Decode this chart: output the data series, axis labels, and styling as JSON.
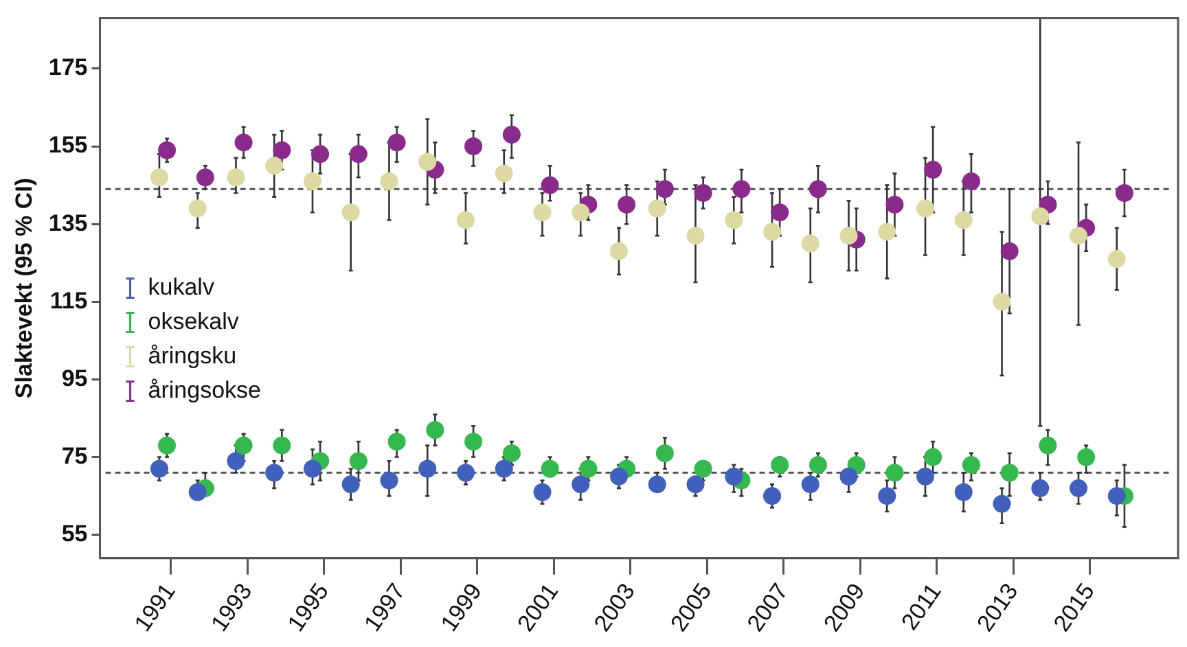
{
  "chart_data": {
    "type": "scatter",
    "ylabel": "Slaktevekt (95 % CI)",
    "categories": [
      "1991",
      null,
      "1993",
      null,
      "1995",
      null,
      "1997",
      null,
      "1999",
      null,
      "2001",
      null,
      "2003",
      null,
      "2005",
      null,
      "2007",
      null,
      "2009",
      null,
      "2011",
      null,
      "2013",
      null,
      "2015",
      null
    ],
    "ylim": [
      49,
      188
    ],
    "yticks": [
      55,
      75,
      95,
      115,
      135,
      155,
      175
    ],
    "grid": false,
    "legend": "left",
    "marker": "circle",
    "series": [
      {
        "name": "kukalv",
        "color": "#4060bc",
        "values": [
          72,
          66,
          74,
          71,
          72,
          68,
          69,
          72,
          71,
          72,
          66,
          68,
          70,
          68,
          68,
          70,
          65,
          68,
          70,
          65,
          70,
          66,
          63,
          67,
          67,
          65
        ],
        "errors": [
          [
            69,
            75
          ],
          [
            64,
            69
          ],
          [
            71,
            78
          ],
          [
            67,
            74
          ],
          [
            68,
            77
          ],
          [
            64,
            72
          ],
          [
            65,
            74
          ],
          [
            65,
            78
          ],
          [
            68,
            74
          ],
          [
            69,
            75
          ],
          [
            63,
            69
          ],
          [
            64,
            72
          ],
          [
            67,
            73
          ],
          [
            66,
            71
          ],
          [
            65,
            70
          ],
          [
            66,
            73
          ],
          [
            62,
            68
          ],
          [
            64,
            71
          ],
          [
            66,
            72
          ],
          [
            61,
            69
          ],
          [
            65,
            75
          ],
          [
            61,
            71
          ],
          [
            58,
            67
          ],
          [
            64,
            71
          ],
          [
            63,
            71
          ],
          [
            60,
            69
          ]
        ]
      },
      {
        "name": "oksekalv",
        "color": "#33b94e",
        "values": [
          78,
          67,
          78,
          78,
          74,
          74,
          79,
          82,
          79,
          76,
          72,
          72,
          72,
          76,
          72,
          69,
          73,
          73,
          73,
          71,
          75,
          73,
          71,
          78,
          75,
          65
        ],
        "errors": [
          [
            75,
            81
          ],
          [
            65,
            71
          ],
          [
            74,
            81
          ],
          [
            74,
            82
          ],
          [
            69,
            79
          ],
          [
            69,
            79
          ],
          [
            75,
            82
          ],
          [
            78,
            86
          ],
          [
            75,
            83
          ],
          [
            73,
            79
          ],
          [
            70,
            75
          ],
          [
            69,
            75
          ],
          [
            70,
            75
          ],
          [
            72,
            80
          ],
          [
            69,
            74
          ],
          [
            65,
            72
          ],
          [
            70,
            75
          ],
          [
            70,
            76
          ],
          [
            70,
            76
          ],
          [
            67,
            75
          ],
          [
            71,
            79
          ],
          [
            69,
            76
          ],
          [
            65,
            76
          ],
          [
            73,
            82
          ],
          [
            71,
            78
          ],
          [
            57,
            73
          ]
        ]
      },
      {
        "name": "åringsku",
        "color": "#dcd9a2",
        "values": [
          147,
          139,
          147,
          150,
          146,
          138,
          146,
          151,
          136,
          148,
          138,
          138,
          128,
          139,
          132,
          136,
          133,
          130,
          132,
          133,
          139,
          136,
          115,
          137,
          132,
          126
        ],
        "errors": [
          [
            142,
            153
          ],
          [
            134,
            143
          ],
          [
            143,
            152
          ],
          [
            142,
            158
          ],
          [
            138,
            154
          ],
          [
            123,
            153
          ],
          [
            136,
            156
          ],
          [
            140,
            162
          ],
          [
            130,
            143
          ],
          [
            143,
            154
          ],
          [
            132,
            143
          ],
          [
            132,
            143
          ],
          [
            122,
            134
          ],
          [
            132,
            146
          ],
          [
            120,
            145
          ],
          [
            130,
            142
          ],
          [
            124,
            143
          ],
          [
            120,
            139
          ],
          [
            123,
            141
          ],
          [
            121,
            145
          ],
          [
            127,
            152
          ],
          [
            127,
            146
          ],
          [
            96,
            133
          ],
          [
            83,
            188
          ],
          [
            109,
            156
          ],
          [
            118,
            134
          ]
        ]
      },
      {
        "name": "åringsokse",
        "color": "#8a2a8c",
        "values": [
          154,
          147,
          156,
          154,
          153,
          153,
          156,
          149,
          155,
          158,
          145,
          140,
          140,
          144,
          143,
          144,
          138,
          144,
          131,
          140,
          149,
          146,
          128,
          140,
          134,
          143
        ],
        "errors": [
          [
            151,
            157
          ],
          [
            144,
            150
          ],
          [
            152,
            160
          ],
          [
            149,
            159
          ],
          [
            148,
            158
          ],
          [
            147,
            158
          ],
          [
            151,
            160
          ],
          [
            143,
            156
          ],
          [
            150,
            159
          ],
          [
            152,
            163
          ],
          [
            141,
            150
          ],
          [
            136,
            145
          ],
          [
            135,
            145
          ],
          [
            140,
            149
          ],
          [
            139,
            147
          ],
          [
            138,
            149
          ],
          [
            132,
            144
          ],
          [
            138,
            150
          ],
          [
            123,
            139
          ],
          [
            132,
            148
          ],
          [
            138,
            160
          ],
          [
            138,
            153
          ],
          [
            112,
            144
          ],
          [
            135,
            146
          ],
          [
            128,
            140
          ],
          [
            137,
            149
          ]
        ]
      }
    ],
    "ref_lines": [
      {
        "axis": "y",
        "value": 144,
        "line_style": "dashed",
        "color": "#555555"
      },
      {
        "axis": "y",
        "value": 71,
        "line_style": "dashed",
        "color": "#555555"
      }
    ]
  }
}
